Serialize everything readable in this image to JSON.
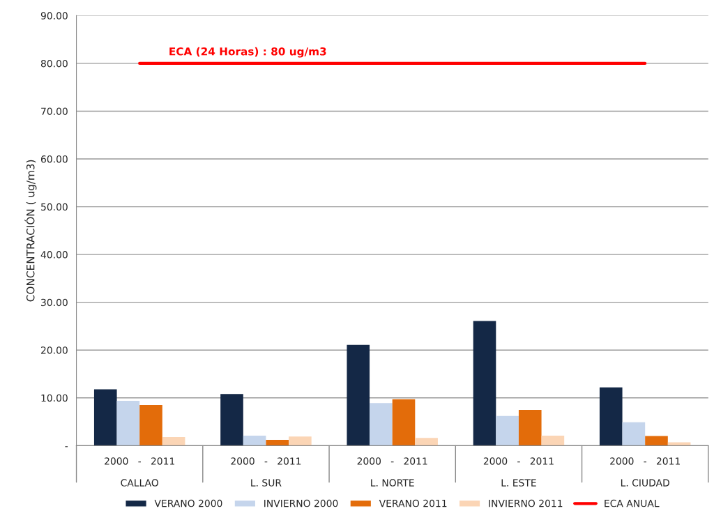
{
  "chart_data": {
    "type": "bar",
    "ylabel": "CONCENTRACIÓN ( ug/m3)",
    "categories": [
      "2000   -   2011\n\nCALLAO",
      "2000   -   2011\n\nL. SUR",
      "2000   -   2011\n\nL. NORTE",
      "2000   -   2011\n\nL. ESTE",
      "2000   -   2011\n\nL. CIUDAD"
    ],
    "series": [
      {
        "name": "VERANO 2000",
        "color": "#142846",
        "values": [
          11.8,
          10.8,
          21.1,
          26.1,
          12.2
        ]
      },
      {
        "name": "INVIERNO 2000",
        "color": "#c5d5ec",
        "values": [
          9.4,
          2.1,
          8.9,
          6.2,
          4.9
        ]
      },
      {
        "name": "VERANO 2011",
        "color": "#e36c0a",
        "values": [
          8.5,
          1.2,
          9.7,
          7.5,
          2.0
        ]
      },
      {
        "name": "INVIERNO 2011",
        "color": "#fbd5b5",
        "values": [
          1.8,
          1.9,
          1.6,
          2.1,
          0.7
        ]
      },
      {
        "name": "ECA ANUAL",
        "type": "line",
        "color": "#ff0000",
        "values": [
          80,
          80,
          80,
          80,
          80
        ]
      }
    ],
    "annotations": [
      {
        "text": "ECA (24 Horas) : 80 ug/m3",
        "x": "2000   -   2011\n\nCALLAO",
        "y": 80
      }
    ],
    "ylim": [
      0,
      90
    ],
    "yticks": [
      {
        "value": 0,
        "label": "-"
      },
      {
        "value": 10,
        "label": "10.00"
      },
      {
        "value": 20,
        "label": "20.00"
      },
      {
        "value": 30,
        "label": "30.00"
      },
      {
        "value": 40,
        "label": "40.00"
      },
      {
        "value": 50,
        "label": "50.00"
      },
      {
        "value": 60,
        "label": "60.00"
      },
      {
        "value": 70,
        "label": "70.00"
      },
      {
        "value": 80,
        "label": "80.00"
      },
      {
        "value": 90,
        "label": "90.00"
      }
    ],
    "grid": "y",
    "legend": "bottom"
  }
}
